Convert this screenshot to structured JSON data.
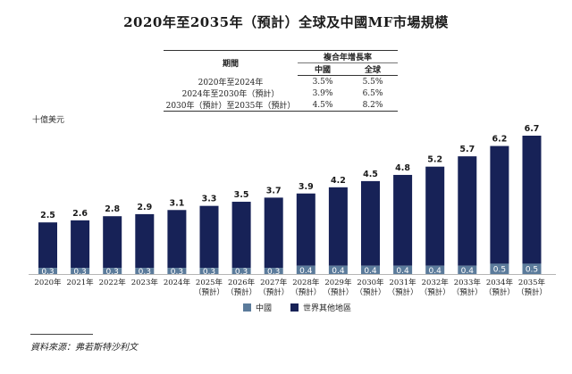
{
  "title": "2020年至2035年（預計）全球及中國MF市場規模",
  "cagr_table": {
    "col_period": "期間",
    "group_header": "複合年增長率",
    "col_china": "中國",
    "col_global": "全球",
    "rows": [
      {
        "period": "2020年至2024年",
        "china": "3.5%",
        "global": "5.5%"
      },
      {
        "period": "2024年至2030年（預計）",
        "china": "3.9%",
        "global": "6.5%"
      },
      {
        "period": "2030年（預計）至2035年（預計）",
        "china": "4.5%",
        "global": "8.2%"
      }
    ]
  },
  "unit_label": "十億美元",
  "source": "資料來源：弗若斯特沙利文",
  "colors": {
    "china": "#5b7b9b",
    "rest": "#172257"
  },
  "chart_data": {
    "type": "bar",
    "stacked": true,
    "categories": [
      [
        "2020年"
      ],
      [
        "2021年"
      ],
      [
        "2022年"
      ],
      [
        "2023年"
      ],
      [
        "2024年"
      ],
      [
        "2025年",
        "（預計）"
      ],
      [
        "2026年",
        "（預計）"
      ],
      [
        "2027年",
        "（預計）"
      ],
      [
        "2028年",
        "（預計）"
      ],
      [
        "2029年",
        "（預計）"
      ],
      [
        "2030年",
        "（預計）"
      ],
      [
        "2031年",
        "（預計）"
      ],
      [
        "2032年",
        "（預計）"
      ],
      [
        "2033年",
        "（預計）"
      ],
      [
        "2034年",
        "（預計）"
      ],
      [
        "2035年",
        "（預計）"
      ]
    ],
    "totals": [
      "2.5",
      "2.6",
      "2.8",
      "2.9",
      "3.1",
      "3.3",
      "3.5",
      "3.7",
      "3.9",
      "4.2",
      "4.5",
      "4.8",
      "5.2",
      "5.7",
      "6.2",
      "6.7"
    ],
    "series": [
      {
        "name": "中國",
        "values": [
          "0.3",
          "0.3",
          "0.3",
          "0.3",
          "0.3",
          "0.3",
          "0.3",
          "0.3",
          "0.4",
          "0.4",
          "0.4",
          "0.4",
          "0.4",
          "0.4",
          "0.5",
          "0.5"
        ]
      },
      {
        "name": "世界其他地區",
        "values": [
          2.2,
          2.3,
          2.5,
          2.6,
          2.8,
          3.0,
          3.2,
          3.4,
          3.5,
          3.8,
          4.1,
          4.4,
          4.8,
          5.3,
          5.7,
          6.2
        ]
      }
    ],
    "ylabel": "十億美元",
    "ylim": [
      0,
      6.7
    ],
    "legend_position": "bottom-center"
  }
}
